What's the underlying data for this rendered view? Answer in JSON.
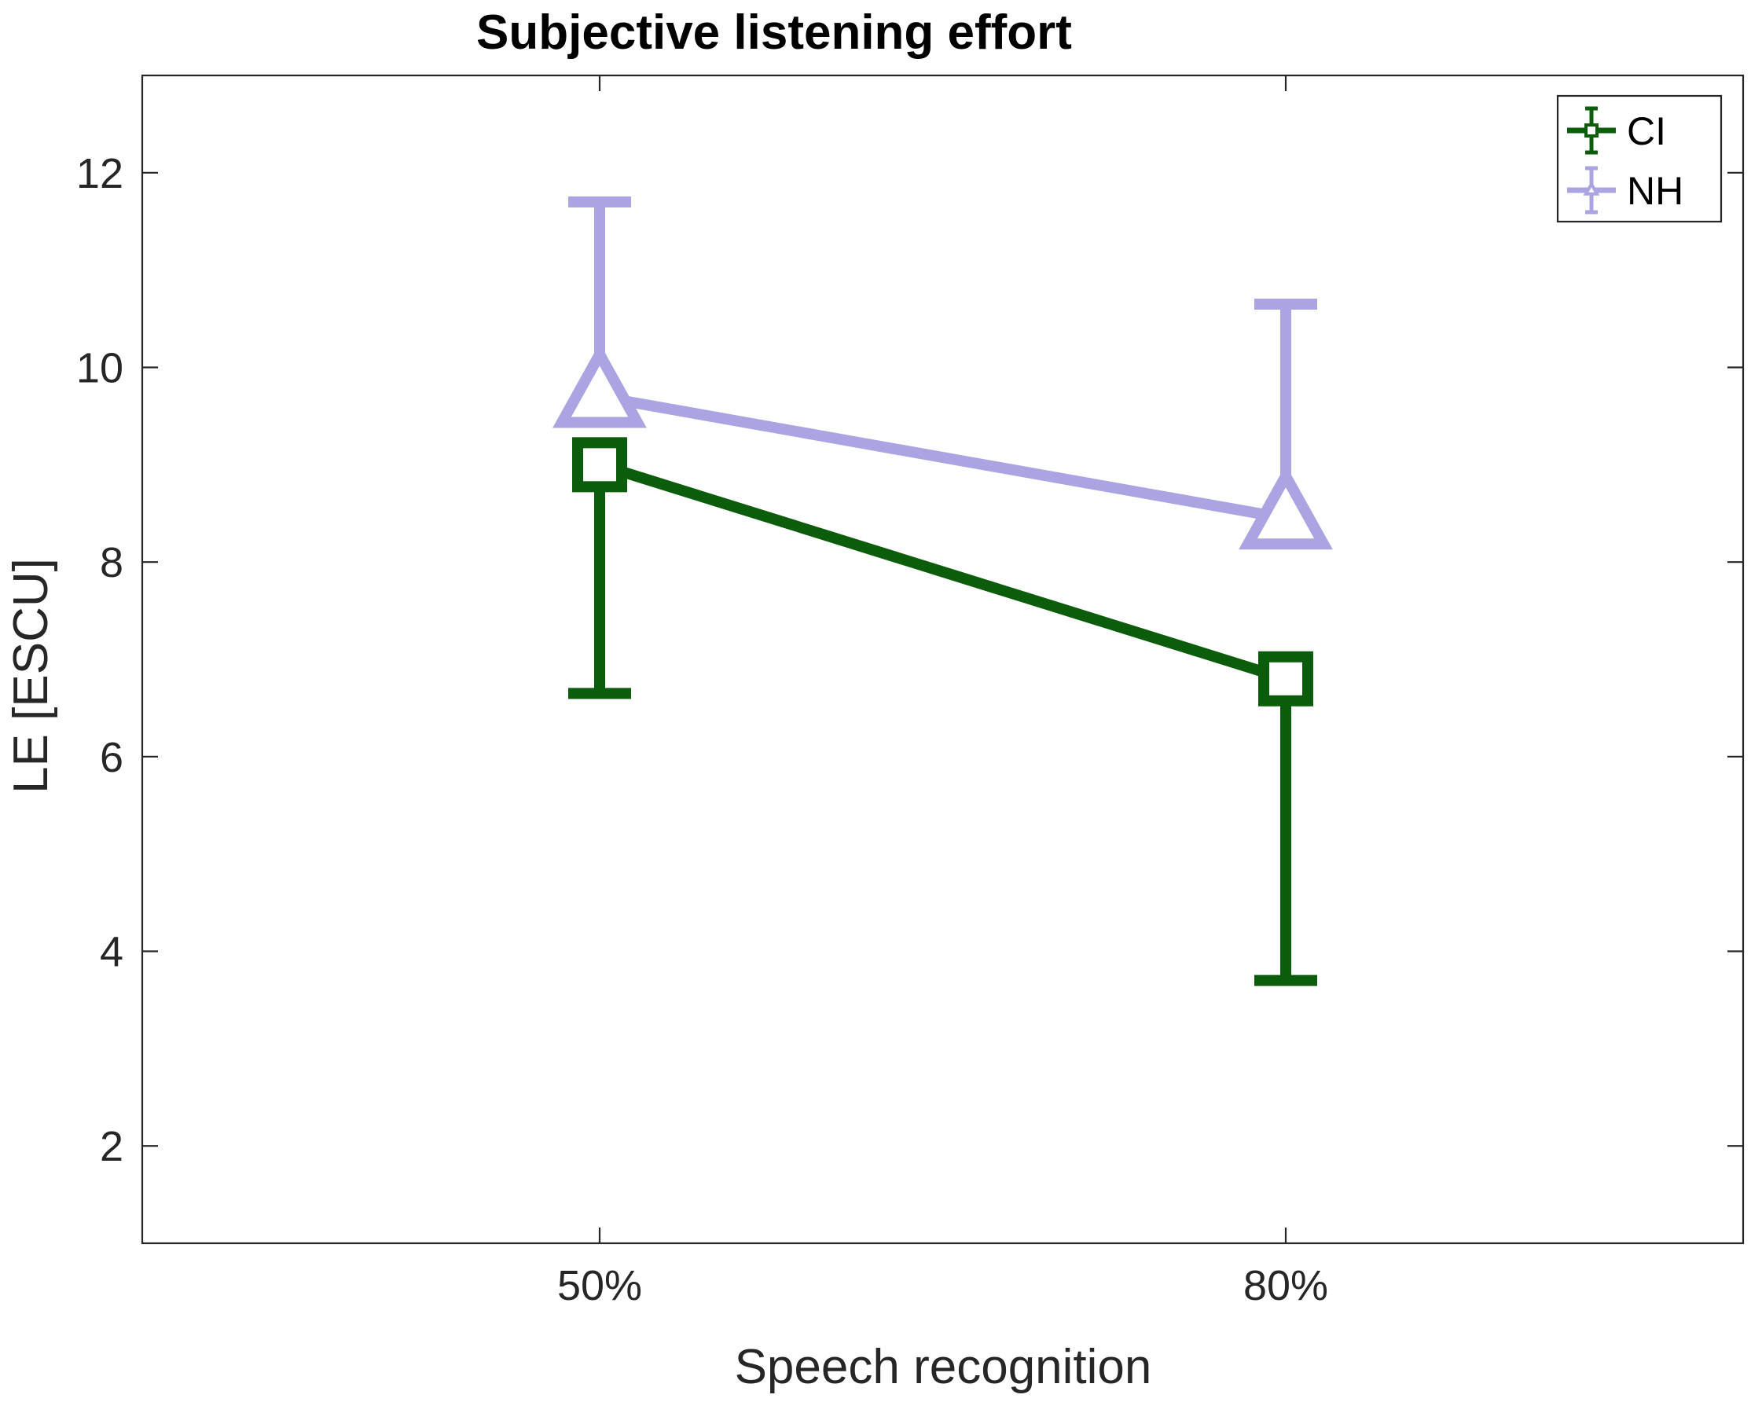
{
  "chart_data": {
    "type": "line",
    "title": "Subjective listening effort",
    "xlabel": "Speech recognition",
    "ylabel": "LE [ESCU]",
    "categories": [
      "50%",
      "80%"
    ],
    "ylim": [
      1,
      13
    ],
    "yticks": [
      2,
      4,
      6,
      8,
      10,
      12
    ],
    "grid": false,
    "legend_position": "top-right",
    "series": [
      {
        "name": "CI",
        "values": [
          9.0,
          6.8
        ],
        "error": [
          2.35,
          3.1
        ],
        "error_direction": "lower",
        "marker": "square",
        "color": "#0b5c0b"
      },
      {
        "name": "NH",
        "values": [
          9.7,
          8.45
        ],
        "error": [
          2.0,
          2.2
        ],
        "error_direction": "upper",
        "marker": "triangle",
        "color": "#aaa4e2"
      }
    ]
  }
}
